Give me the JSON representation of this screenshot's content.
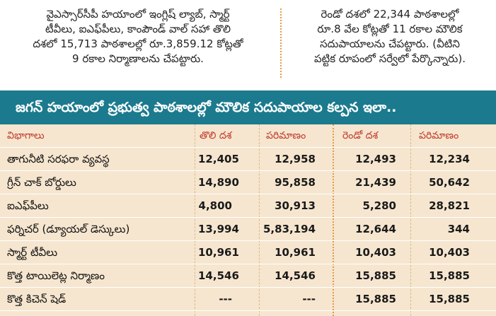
{
  "intro": {
    "left_lines": [
      "వైఎస్సార్‌సీపీ హయాంలో ఇంగ్లిష్ ల్యాబ్, స్మార్ట్",
      "టీవీలు, ఐఎఫ్‌పీలు, కాంపౌండ్ వాల్ సహా తొలి",
      "దశలో 15,713 పాఠశాలల్లో రూ.3,859.12 కోట్లతో",
      "9 రకాల నిర్మాణాలను చేపట్టారు."
    ],
    "right_lines": [
      "రెండో దశలో 22,344 పాఠశాలల్లో",
      "రూ.8 వేల కోట్లతో 11 రకాల మౌలిక",
      "సదుపాయాలను చేపట్టారు. (వీటిని",
      "పట్టిక రూపంలో సర్వేలో పేర్కొన్నారు)."
    ]
  },
  "banner": {
    "title": "జగన్ హయాంలో ప్రభుత్వ పాఠశాలల్లో మౌలిక సదుపాయాల కల్పన ఇలా.."
  },
  "table": {
    "headers": [
      "విభాగాలు",
      "తొలి దశ",
      "పరిమాణం",
      "రెండో దశ",
      "పరిమాణం"
    ],
    "rows": [
      [
        "తాగునీటి సరఫరా వ్యవస్థ",
        "12,405",
        "12,958",
        "12,493",
        "12,234"
      ],
      [
        "గ్రీన్ చాక్ బోర్డులు",
        "14,890",
        "95,858",
        "21,439",
        "50,642"
      ],
      [
        "ఐఎఫ్‌పీలు",
        "4,800",
        "30,913",
        "5,280",
        "28,821"
      ],
      [
        "ఫర్నిచర్ (డ్యూయల్ డెస్కులు)",
        "13,994",
        "5,83,194",
        "12,644",
        "344"
      ],
      [
        "స్మార్ట్ టీవీలు",
        "10,961",
        "10,961",
        "10,403",
        "10,403"
      ],
      [
        "కొత్త టాయిలెట్ల నిర్మాణం",
        "14,546",
        "14,546",
        "15,885",
        "15,885"
      ],
      [
        "కొత్త కిచెన్ షెడ్",
        "---",
        "---",
        "15,885",
        "15,885"
      ]
    ]
  },
  "colors": {
    "banner_bg": "#1b7a8e",
    "table_bg": "#f6e6cf",
    "header_text": "#c0392b",
    "divider": "#e49a45"
  }
}
